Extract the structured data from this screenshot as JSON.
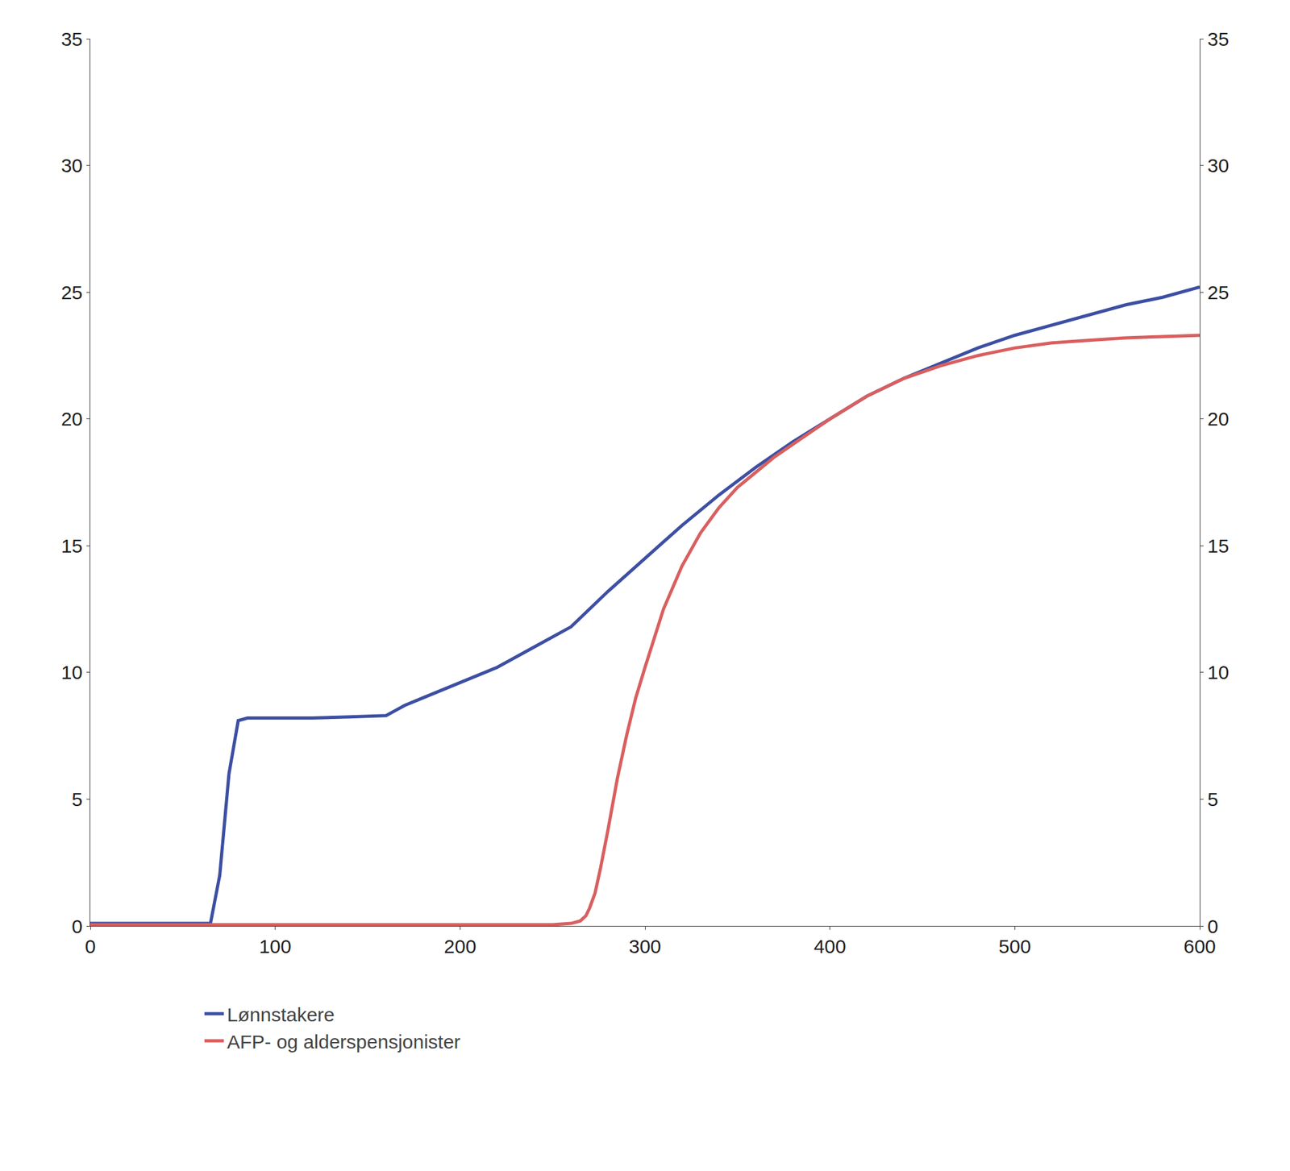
{
  "chart_data": {
    "type": "line",
    "xlim": [
      0,
      600
    ],
    "xticks": [
      0,
      100,
      200,
      300,
      400,
      500,
      600
    ],
    "ylim": [
      0,
      35
    ],
    "yticks": [
      0,
      5,
      10,
      15,
      20,
      25,
      30,
      35
    ],
    "y2lim": [
      0,
      35
    ],
    "y2ticks": [
      0,
      5,
      10,
      15,
      20,
      25,
      30,
      35
    ],
    "grid": false,
    "legend": "bottom",
    "series": [
      {
        "name": "Lønnstakere",
        "color": "#3d4fa3",
        "x": [
          0,
          65,
          70,
          75,
          80,
          85,
          100,
          120,
          140,
          160,
          165,
          170,
          180,
          200,
          220,
          240,
          260,
          280,
          300,
          320,
          340,
          360,
          380,
          400,
          420,
          440,
          460,
          480,
          500,
          520,
          540,
          560,
          580,
          600
        ],
        "values": [
          0.1,
          0.1,
          2.0,
          6.0,
          8.1,
          8.2,
          8.2,
          8.2,
          8.25,
          8.3,
          8.5,
          8.7,
          9.0,
          9.6,
          10.2,
          11.0,
          11.8,
          13.2,
          14.5,
          15.8,
          17.0,
          18.1,
          19.1,
          20.0,
          20.9,
          21.6,
          22.2,
          22.8,
          23.3,
          23.7,
          24.1,
          24.5,
          24.8,
          25.2
        ]
      },
      {
        "name": "AFP- og alderspensjonister",
        "color": "#d95f5f",
        "x": [
          0,
          100,
          200,
          250,
          260,
          265,
          268,
          270,
          273,
          276,
          280,
          285,
          290,
          295,
          300,
          310,
          320,
          330,
          340,
          350,
          360,
          370,
          380,
          390,
          400,
          420,
          440,
          460,
          480,
          500,
          520,
          540,
          560,
          580,
          600
        ],
        "values": [
          0.05,
          0.05,
          0.05,
          0.05,
          0.1,
          0.2,
          0.4,
          0.7,
          1.3,
          2.3,
          3.8,
          5.8,
          7.5,
          9.0,
          10.2,
          12.5,
          14.2,
          15.5,
          16.5,
          17.3,
          17.9,
          18.5,
          19.0,
          19.5,
          20.0,
          20.9,
          21.6,
          22.1,
          22.5,
          22.8,
          23.0,
          23.1,
          23.2,
          23.25,
          23.3
        ]
      }
    ]
  }
}
